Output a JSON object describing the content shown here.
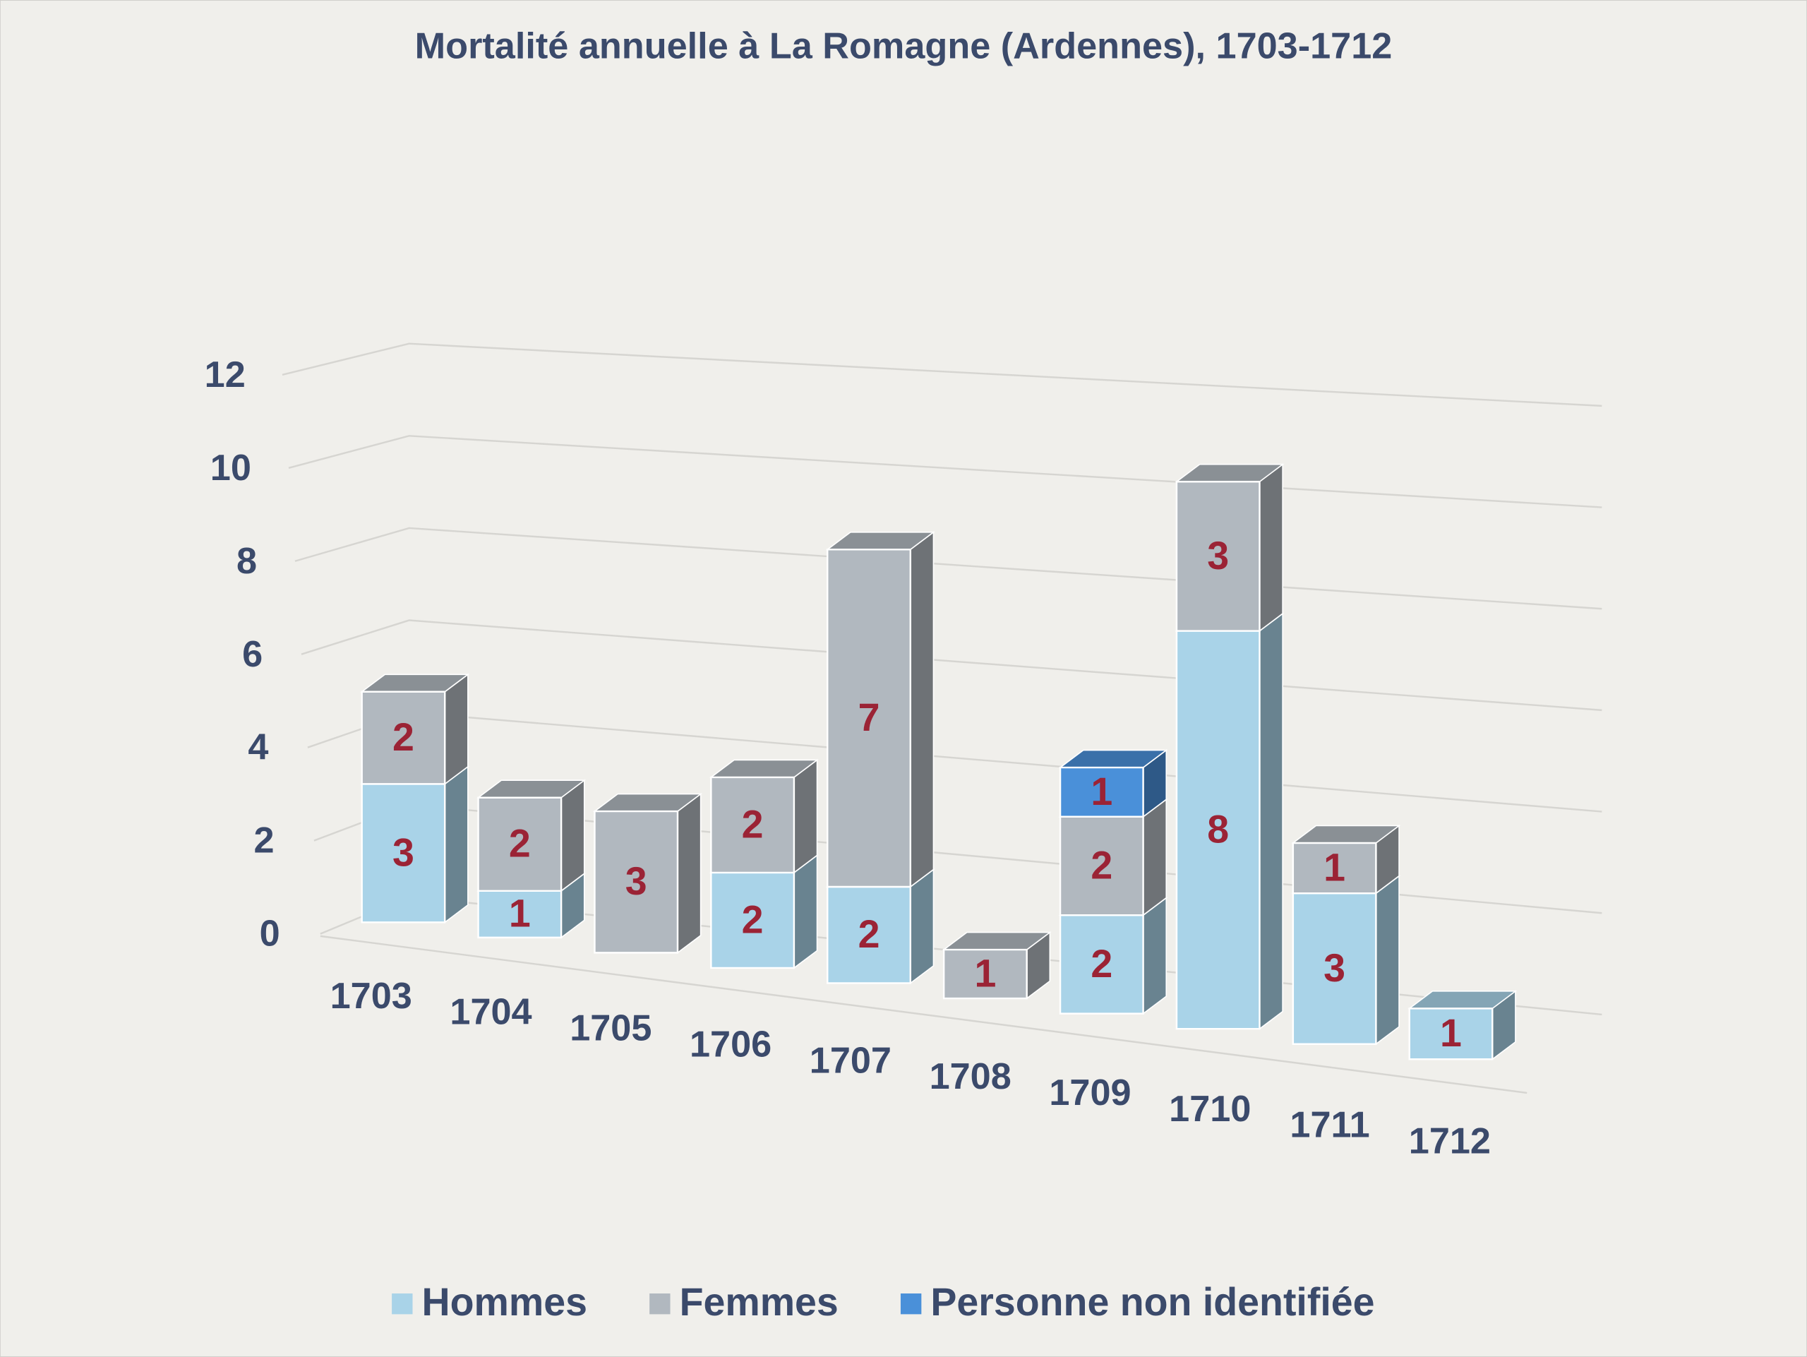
{
  "chart_data": {
    "type": "bar3d_stacked",
    "title": "Mortalité annuelle à La Romagne (Ardennes), 1703-1712",
    "categories": [
      "1703",
      "1704",
      "1705",
      "1706",
      "1707",
      "1708",
      "1709",
      "1710",
      "1711",
      "1712"
    ],
    "series": [
      {
        "name": "Hommes",
        "color": "#a9d3e8",
        "values": [
          3,
          1,
          null,
          2,
          2,
          null,
          2,
          8,
          3,
          1
        ]
      },
      {
        "name": "Femmes",
        "color": "#b1b8bf",
        "values": [
          2,
          2,
          3,
          2,
          7,
          1,
          2,
          3,
          1,
          null
        ]
      },
      {
        "name": "Personne non identifiée",
        "color": "#4a90d9",
        "values": [
          null,
          null,
          null,
          null,
          null,
          null,
          1,
          null,
          null,
          null
        ]
      }
    ],
    "ylim": [
      0,
      12
    ],
    "yticks": [
      0,
      2,
      4,
      6,
      8,
      10,
      12
    ],
    "grid": true,
    "legend": "bottom"
  }
}
